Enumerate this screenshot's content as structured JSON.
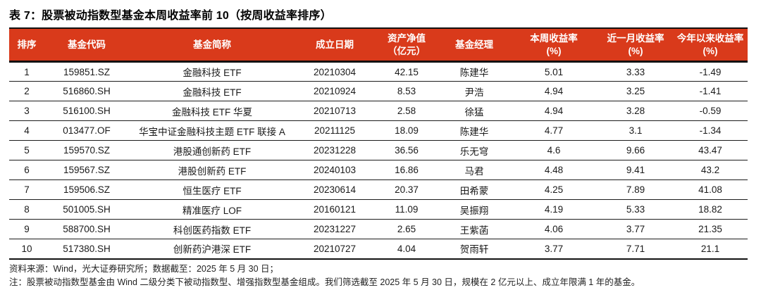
{
  "title": "表 7：股票被动指数型基金本周收益率前 10（按周收益率排序）",
  "colors": {
    "header_bg": "#d93a1b",
    "header_text": "#ffffff",
    "body_text": "#1a1a1a",
    "rule": "#111111"
  },
  "table": {
    "columns": [
      {
        "key": "rank",
        "label": "排序"
      },
      {
        "key": "fund-code",
        "label": "基金代码"
      },
      {
        "key": "fund-name",
        "label": "基金简称"
      },
      {
        "key": "inception-date",
        "label": "成立日期"
      },
      {
        "key": "net-asset-value",
        "label": "资产净值\n（亿元）"
      },
      {
        "key": "fund-manager",
        "label": "基金经理"
      },
      {
        "key": "weekly-return",
        "label": "本周收益率\n(%)"
      },
      {
        "key": "monthly-return",
        "label": "近一月收益率\n(%)"
      },
      {
        "key": "ytd-return",
        "label": "今年以来收益率\n(%)"
      }
    ],
    "rows": [
      [
        "1",
        "159851.SZ",
        "金融科技 ETF",
        "20210304",
        "42.15",
        "陈建华",
        "5.01",
        "3.33",
        "-1.49"
      ],
      [
        "2",
        "516860.SH",
        "金融科技 ETF",
        "20210924",
        "8.53",
        "尹浩",
        "4.94",
        "3.25",
        "-1.41"
      ],
      [
        "3",
        "516100.SH",
        "金融科技 ETF 华夏",
        "20210713",
        "2.58",
        "徐猛",
        "4.94",
        "3.28",
        "-0.59"
      ],
      [
        "4",
        "013477.OF",
        "华宝中证金融科技主题 ETF 联接 A",
        "20211125",
        "18.09",
        "陈建华",
        "4.77",
        "3.1",
        "-1.34"
      ],
      [
        "5",
        "159570.SZ",
        "港股通创新药 ETF",
        "20231228",
        "36.56",
        "乐无穹",
        "4.6",
        "9.66",
        "43.47"
      ],
      [
        "6",
        "159567.SZ",
        "港股创新药 ETF",
        "20240103",
        "16.86",
        "马君",
        "4.48",
        "9.41",
        "43.2"
      ],
      [
        "7",
        "159506.SZ",
        "恒生医疗 ETF",
        "20230614",
        "20.37",
        "田希蒙",
        "4.25",
        "7.89",
        "41.08"
      ],
      [
        "8",
        "501005.SH",
        "精准医疗 LOF",
        "20160121",
        "11.09",
        "吴振翔",
        "4.19",
        "5.33",
        "18.82"
      ],
      [
        "9",
        "588700.SH",
        "科创医药指数 ETF",
        "20231227",
        "2.65",
        "王紫菡",
        "4.06",
        "3.77",
        "21.35"
      ],
      [
        "10",
        "517380.SH",
        "创新药沪港深 ETF",
        "20210727",
        "4.04",
        "贺雨轩",
        "3.77",
        "7.71",
        "21.1"
      ]
    ]
  },
  "footer": {
    "source_line": "资料来源：Wind，光大证券研究所；数据截至：2025 年 5 月 30 日；",
    "note_line": "注：股票被动指数型基金由 Wind 二级分类下被动指数型、增强指数型基金组成。我们筛选截至 2025 年 5 月 30 日，规模在 2 亿元以上、成立年限满 1 年的基金。"
  }
}
